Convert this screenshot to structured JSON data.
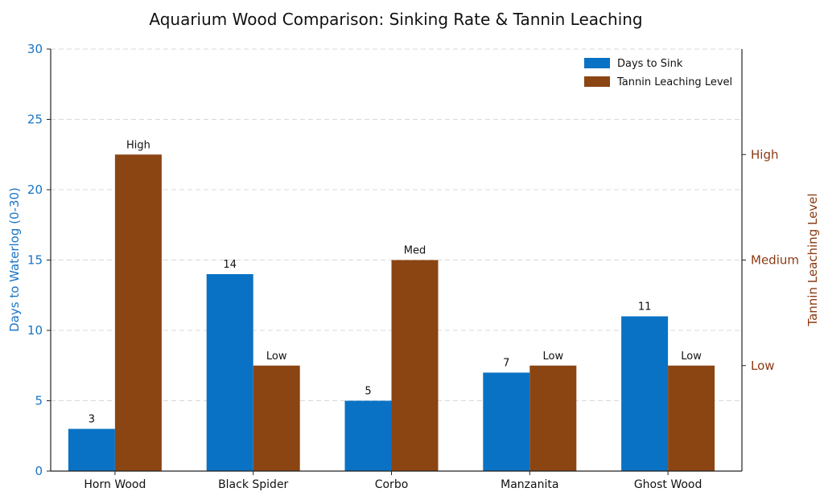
{
  "chart_data": {
    "type": "bar",
    "title": "Aquarium Wood Comparison: Sinking Rate & Tannin Leaching",
    "categories": [
      "Horn Wood",
      "Black Spider",
      "Corbo",
      "Manzanita",
      "Ghost Wood"
    ],
    "series": [
      {
        "name": "Days to Sink",
        "axis": "left",
        "color": "#0a72c4",
        "values": [
          3,
          14,
          5,
          7,
          11
        ],
        "labels": [
          "3",
          "14",
          "5",
          "7",
          "11"
        ]
      },
      {
        "name": "Tannin Leaching Level",
        "axis": "right",
        "color": "#8b4513",
        "values": [
          3,
          1,
          2,
          1,
          1
        ],
        "labels": [
          "High",
          "Low",
          "Med",
          "Low",
          "Low"
        ]
      }
    ],
    "ylabel_left": "Days to Waterlog (0-30)",
    "ylim_left": [
      0,
      30
    ],
    "yticks_left": [
      "0",
      "5",
      "10",
      "15",
      "20",
      "25",
      "30"
    ],
    "ylabel_right": "Tannin Leaching Level",
    "ylim_right": [
      0,
      4
    ],
    "yticks_right": [
      {
        "value": 1,
        "label": "Low"
      },
      {
        "value": 2,
        "label": "Medium"
      },
      {
        "value": 3,
        "label": "High"
      }
    ],
    "grid": true,
    "legend_position": "top-right"
  }
}
